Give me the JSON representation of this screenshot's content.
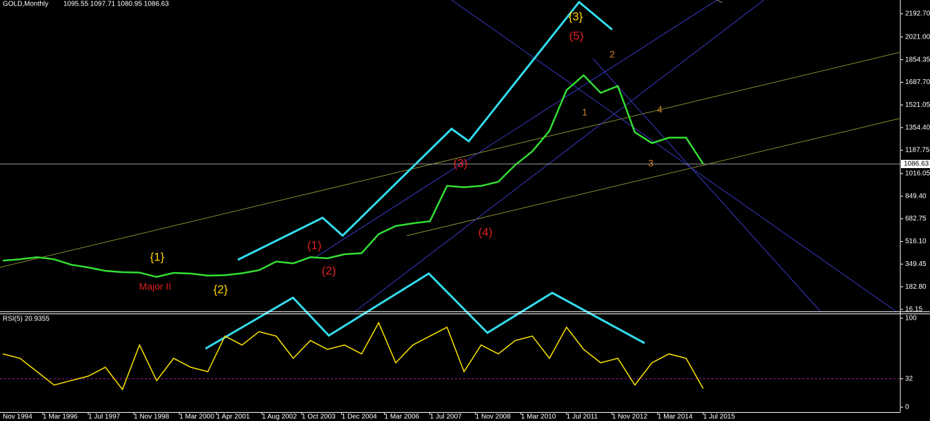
{
  "chart_data": [
    {
      "type": "line",
      "title": "GOLD,Monthly",
      "subtitle": "1095.55 1097.71 1080.95 1086.63",
      "x": [
        "1 Jan 1995",
        "1 Jul 1995",
        "1 Jan 1996",
        "1 Jul 1996",
        "1 Jan 1997",
        "1 Jul 1997",
        "1 Jan 1998",
        "1 Jul 1998",
        "1 Jan 1999",
        "1 Jul 1999",
        "1 Jan 2000",
        "1 Jul 2000",
        "1 Jan 2001",
        "1 Jul 2001",
        "1 Jan 2002",
        "1 Jul 2002",
        "1 Jan 2003",
        "1 Jul 2003",
        "1 Jan 2004",
        "1 Jul 2004",
        "1 Jan 2005",
        "1 Jul 2005",
        "1 Jan 2006",
        "1 Jul 2006",
        "1 Jan 2007",
        "1 Jul 2007",
        "1 Jan 2008",
        "1 Jul 2008",
        "1 Jan 2009",
        "1 Jul 2009",
        "1 Jan 2010",
        "1 Jul 2010",
        "1 Jan 2011",
        "1 Jul 2011",
        "1 Jan 2012",
        "1 Jul 2012",
        "1 Jan 2013",
        "1 Jul 2013",
        "1 Jan 2014",
        "1 Jul 2014",
        "1 Jan 2015",
        "1 Jul 2015"
      ],
      "series": [
        {
          "color": "#33e033",
          "values": [
            375,
            385,
            400,
            385,
            345,
            325,
            300,
            290,
            287,
            255,
            285,
            280,
            265,
            268,
            282,
            305,
            368,
            355,
            400,
            392,
            422,
            430,
            570,
            630,
            650,
            665,
            925,
            915,
            925,
            955,
            1080,
            1180,
            1330,
            1630,
            1740,
            1610,
            1660,
            1320,
            1240,
            1280,
            1280,
            1086.63
          ]
        }
      ],
      "ylim": [
        1,
        2293.7
      ],
      "yticks": [
        {
          "value": 2192.7,
          "label": "2192.70"
        },
        {
          "value": 2021,
          "label": "2021.00"
        },
        1854.35,
        {
          "value": 1687.7,
          "label": "1687.70"
        },
        1521.05,
        {
          "value": 1354.4,
          "label": "1354.40"
        },
        1187.75,
        1016.05,
        {
          "value": 849.4,
          "label": "849.40"
        },
        682.75,
        {
          "value": 516.1,
          "label": "516.10"
        },
        349.45,
        {
          "value": 182.8,
          "label": "182.80"
        },
        16.15
      ],
      "current_label": "1086.63",
      "annotations": [
        {
          "text": "{1}",
          "color": "#ffd400"
        },
        {
          "text": "{2}",
          "color": "#ffd400"
        },
        {
          "text": "{3}",
          "color": "#ffd400"
        },
        {
          "text": "Major II",
          "color": "#e02020"
        },
        {
          "text": "(1)",
          "color": "#e02020"
        },
        {
          "text": "(2)",
          "color": "#e02020"
        },
        {
          "text": "(3)",
          "color": "#e02020"
        },
        {
          "text": "(4)",
          "color": "#e02020"
        },
        {
          "text": "(5)",
          "color": "#e02020"
        },
        {
          "text": "1",
          "color": "#d08030"
        },
        {
          "text": "2",
          "color": "#d08030"
        },
        {
          "text": "3",
          "color": "#d08030"
        },
        {
          "text": "4",
          "color": "#d08030"
        }
      ]
    },
    {
      "type": "line",
      "title": "RSI(5) 20.9355",
      "x": [
        "1 Jan 1995",
        "1 Jul 1995",
        "1 Jan 1996",
        "1 Jul 1996",
        "1 Jan 1997",
        "1 Jul 1997",
        "1 Jan 1998",
        "1 Jul 1998",
        "1 Jan 1999",
        "1 Jul 1999",
        "1 Jan 2000",
        "1 Jul 2000",
        "1 Jan 2001",
        "1 Jul 2001",
        "1 Jan 2002",
        "1 Jul 2002",
        "1 Jan 2003",
        "1 Jul 2003",
        "1 Jan 2004",
        "1 Jul 2004",
        "1 Jan 2005",
        "1 Jul 2005",
        "1 Jan 2006",
        "1 Jul 2006",
        "1 Jan 2007",
        "1 Jul 2007",
        "1 Jan 2008",
        "1 Jul 2008",
        "1 Jan 2009",
        "1 Jul 2009",
        "1 Jan 2010",
        "1 Jul 2010",
        "1 Jan 2011",
        "1 Jul 2011",
        "1 Jan 2012",
        "1 Jul 2012",
        "1 Jan 2013",
        "1 Jul 2013",
        "1 Jan 2014",
        "1 Jul 2014",
        "1 Jan 2015",
        "1 Jul 2015"
      ],
      "series": [
        {
          "color": "#ffe600",
          "values": [
            60,
            55,
            40,
            25,
            30,
            35,
            45,
            20,
            70,
            30,
            55,
            45,
            40,
            80,
            70,
            85,
            80,
            55,
            75,
            65,
            70,
            60,
            95,
            50,
            70,
            80,
            90,
            40,
            70,
            60,
            75,
            80,
            55,
            90,
            65,
            50,
            55,
            25,
            50,
            60,
            55,
            20.9355
          ]
        }
      ],
      "ylim": [
        -5.4,
        105.4
      ],
      "yticks": [
        100,
        32,
        0
      ],
      "level": 32,
      "xticks": [
        "Nov 1994",
        "1 Mar 1996",
        "1 Jul 1997",
        "1 Nov 1998",
        "1 Mar 2000",
        "1 Apr 2001",
        "1 Aug 2002",
        "1 Oct 2003",
        "1 Dec 2004",
        "1 Mar 2006",
        "1 Jul 2007",
        "1 Nov 2008",
        "1 Mar 2010",
        "1 Jul 2011",
        "1 Nov 2012",
        "1 Mar 2014",
        "1 Jul 2015"
      ]
    }
  ]
}
